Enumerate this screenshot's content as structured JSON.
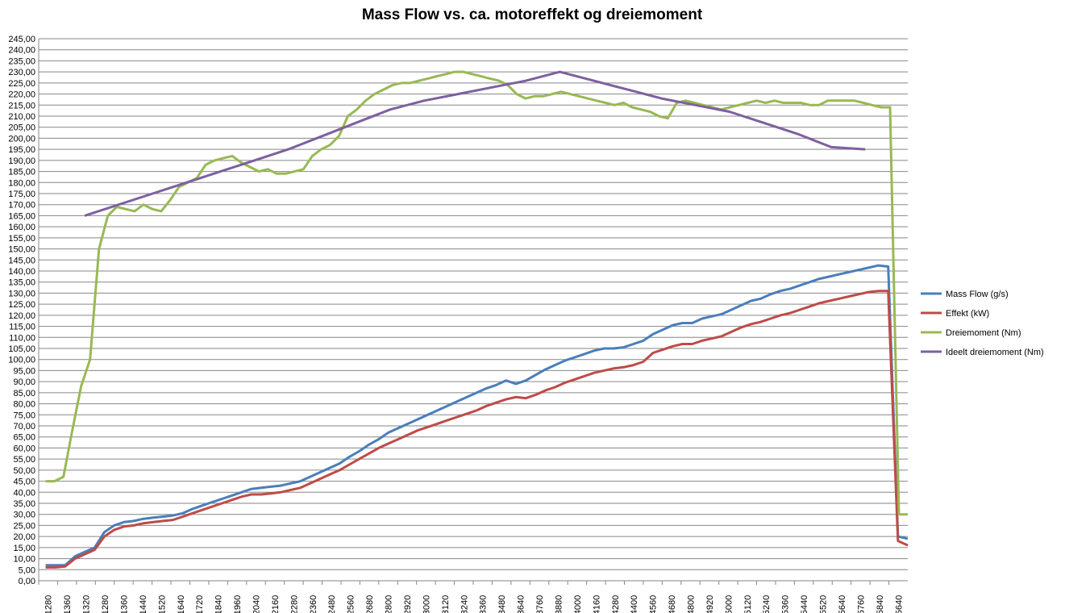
{
  "chart_data": {
    "type": "line",
    "title": "Mass Flow vs. ca. motoreffekt og dreiemoment",
    "xlabel": "",
    "ylabel": "",
    "ylim": [
      0,
      245
    ],
    "y_step": 5,
    "grid": true,
    "legend_position": "right",
    "x_tick_labels": [
      "1280",
      "1360",
      "1320",
      "1280",
      "1360",
      "1440",
      "1520",
      "1640",
      "1720",
      "1840",
      "1960",
      "2040",
      "2160",
      "2280",
      "2360",
      "2480",
      "2560",
      "2680",
      "2800",
      "2920",
      "3000",
      "3120",
      "3240",
      "3360",
      "3480",
      "3640",
      "3760",
      "3880",
      "4000",
      "4160",
      "4280",
      "4400",
      "4560",
      "4680",
      "4800",
      "4920",
      "5000",
      "5120",
      "5240",
      "5360",
      "5440",
      "5520",
      "5640",
      "5760",
      "5840",
      "5640"
    ],
    "series": [
      {
        "name": "Mass Flow (g/s)",
        "color": "#4a7ebb",
        "values": [
          7,
          7,
          7,
          11,
          13,
          15,
          22,
          25,
          26.5,
          27,
          28,
          28.5,
          29,
          29.5,
          30.5,
          32.5,
          34,
          35.5,
          37,
          38.5,
          40,
          41.5,
          42,
          42.5,
          43,
          44,
          45,
          47,
          49,
          51,
          53,
          56,
          58.5,
          61.5,
          64,
          67,
          69,
          71,
          73,
          75,
          77,
          79,
          81,
          83,
          85,
          87,
          88.5,
          90.5,
          89,
          90.5,
          93,
          95.5,
          97.5,
          99.5,
          101,
          102.5,
          104,
          105,
          105,
          105.5,
          107,
          108.5,
          111.5,
          113.5,
          115.5,
          116.5,
          116.5,
          118.5,
          119.5,
          120.5,
          122.5,
          124.5,
          126.5,
          127.5,
          129.5,
          131,
          132,
          133.5,
          135,
          136.5,
          137.5,
          138.5,
          139.5,
          140.5,
          141.5,
          142.5,
          142,
          20,
          19
        ]
      },
      {
        "name": "Effekt (kW)",
        "color": "#be4b48",
        "values": [
          6,
          6,
          6.5,
          10,
          12,
          14,
          20,
          23,
          24.5,
          25,
          26,
          26.5,
          27,
          27.5,
          29,
          30.5,
          32,
          33.5,
          35,
          36.5,
          38,
          39,
          39,
          39.5,
          40,
          41,
          42,
          44,
          46,
          48,
          50,
          52.5,
          55,
          57.5,
          60,
          62,
          64,
          66,
          68,
          69.5,
          71,
          72.5,
          74,
          75.5,
          77,
          79,
          80.5,
          82,
          83,
          82.5,
          84,
          86,
          87.5,
          89.5,
          91,
          92.5,
          94,
          95,
          96,
          96.5,
          97.5,
          99,
          103,
          104.5,
          106,
          107,
          107,
          108.5,
          109.5,
          110.5,
          112.5,
          114.5,
          116,
          117,
          118.5,
          120,
          121,
          122.5,
          124,
          125.5,
          126.5,
          127.5,
          128.5,
          129.5,
          130.5,
          131,
          131,
          18,
          16
        ]
      },
      {
        "name": "Dreiemoment (Nm)",
        "color": "#98b954",
        "values": [
          45,
          45,
          47,
          68,
          88,
          100,
          150,
          165,
          169,
          168,
          167,
          170,
          168,
          167,
          172,
          178,
          180,
          182,
          188,
          190,
          191,
          192,
          189,
          187,
          185,
          186,
          184,
          184,
          185,
          186,
          192,
          195,
          197,
          201,
          210,
          213,
          217,
          220,
          222,
          224,
          225,
          225,
          226,
          227,
          228,
          229,
          230,
          230,
          229,
          228,
          227,
          226,
          224,
          220,
          218,
          219,
          219,
          220,
          221,
          220,
          219,
          218,
          217,
          216,
          215,
          216,
          214,
          213,
          212,
          210,
          209,
          216,
          217,
          216,
          215,
          214,
          213,
          214,
          215,
          216,
          217,
          216,
          217,
          216,
          216,
          216,
          215,
          215,
          217,
          217,
          217,
          217,
          216,
          215,
          214,
          214,
          30,
          30
        ]
      },
      {
        "name": "Ideelt dreiemoment (Nm)",
        "color": "#7d60a0",
        "values": [
          165,
          170,
          175,
          180,
          185,
          190,
          195,
          201,
          207,
          213,
          217,
          220,
          223,
          226,
          230,
          226,
          222,
          218,
          215,
          212,
          207,
          202,
          196,
          195
        ]
      }
    ]
  }
}
